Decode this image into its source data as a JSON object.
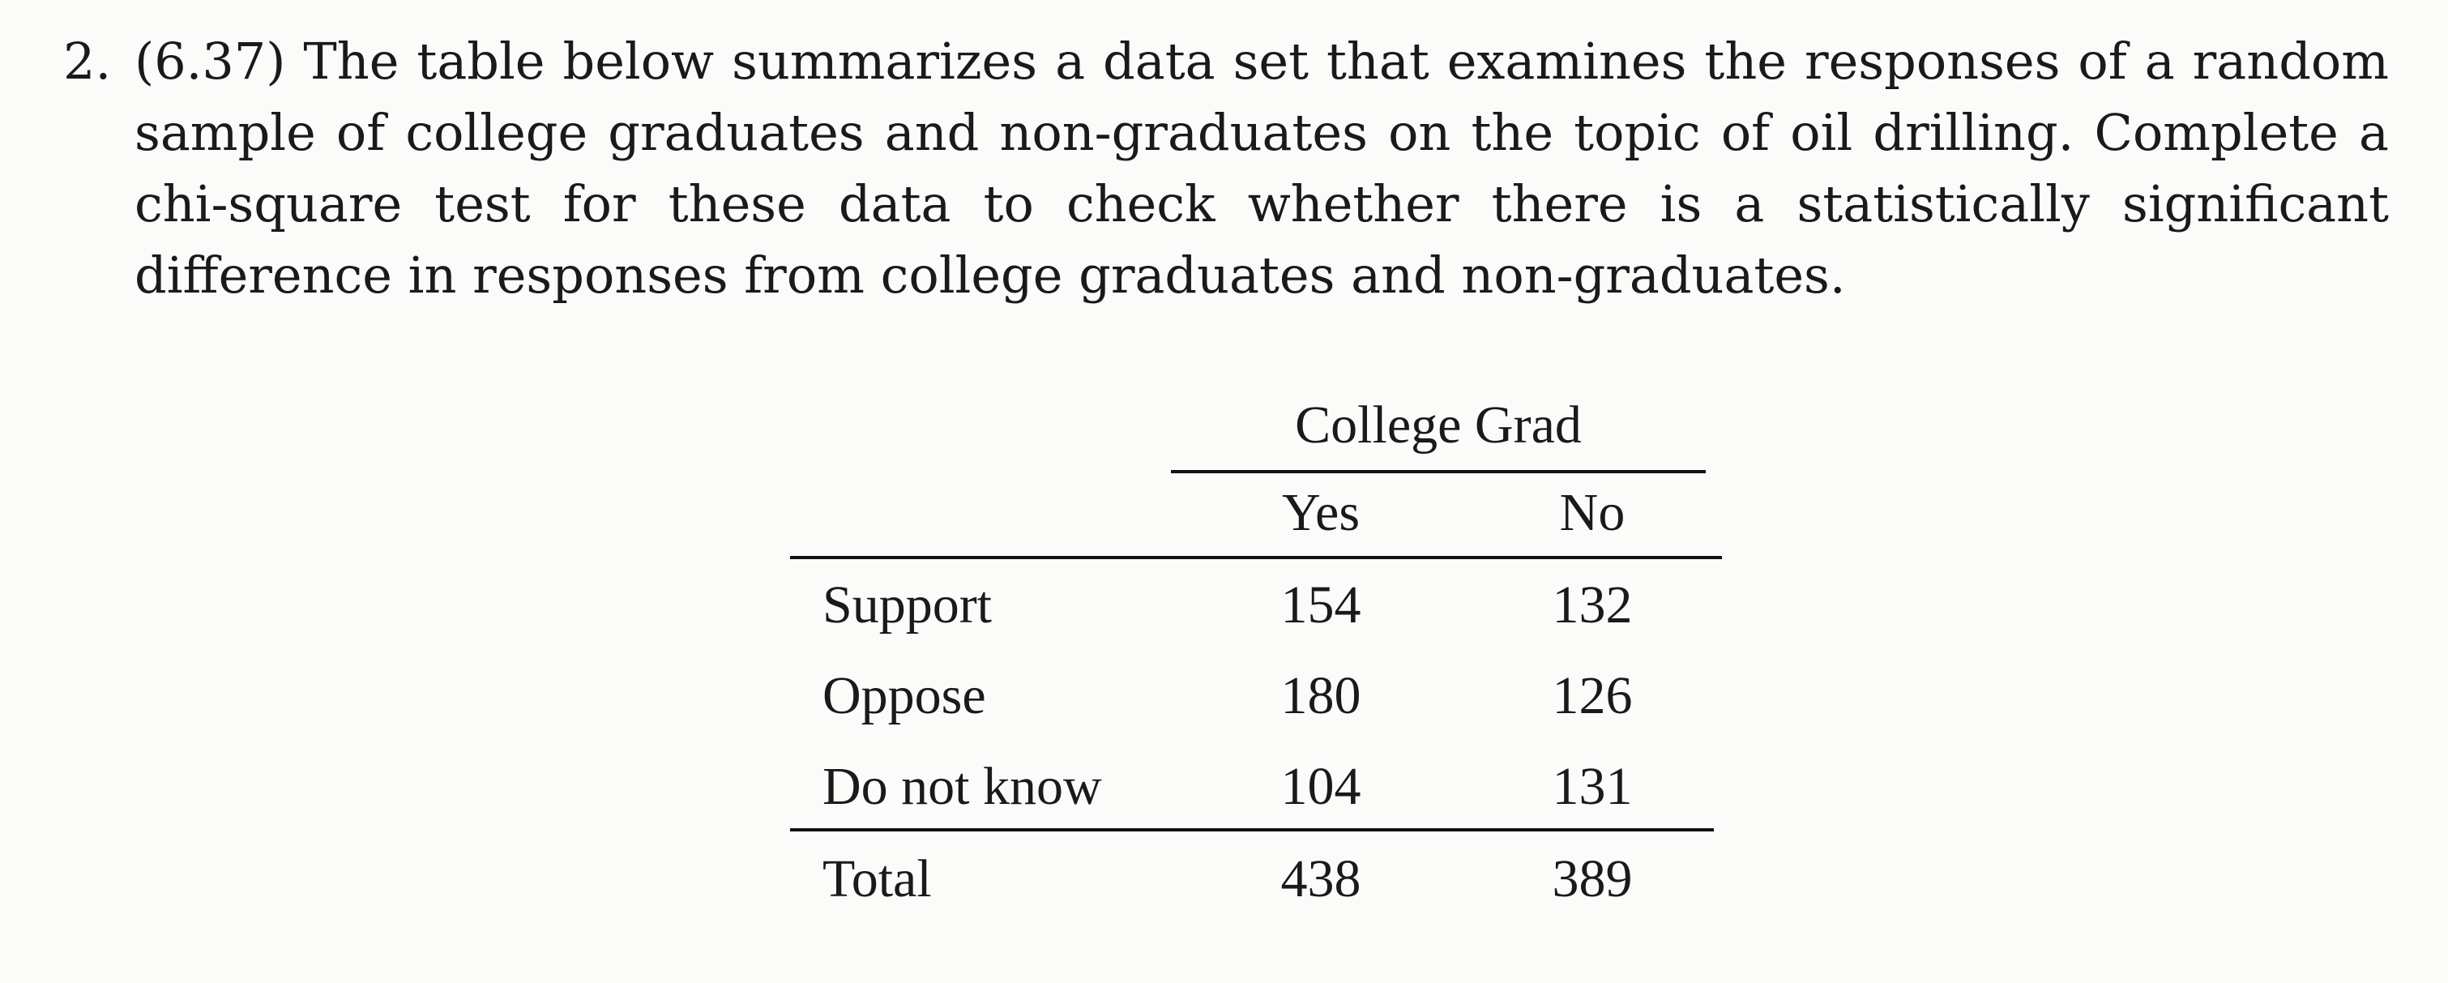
{
  "problem": {
    "number": "2.",
    "text": "(6.37) The table below summarizes a data set that examines the responses of a random sample of college graduates and non-graduates on the topic of oil drilling. Complete a chi-square test for these data to check whether there is a statistically significant difference in responses from college graduates and non-graduates."
  },
  "table": {
    "group_header": "College Grad",
    "columns": [
      "Yes",
      "No"
    ],
    "rows": [
      {
        "label": "Support",
        "yes": "154",
        "no": "132"
      },
      {
        "label": "Oppose",
        "yes": "180",
        "no": "126"
      },
      {
        "label": "Do not know",
        "yes": "104",
        "no": "131"
      }
    ],
    "total": {
      "label": "Total",
      "yes": "438",
      "no": "389"
    }
  }
}
